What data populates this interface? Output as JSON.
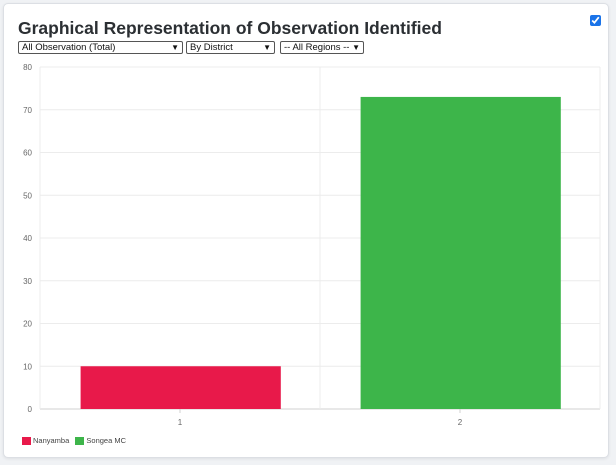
{
  "panel": {
    "title": "Graphical Representation of Observation Identified",
    "show_checkbox_checked": true
  },
  "filters": {
    "observation": {
      "selected": "All Observation (Total)",
      "icon": "chevron-down-icon"
    },
    "grouping": {
      "selected": "By District",
      "icon": "chevron-down-icon"
    },
    "region": {
      "selected": "-- All Regions --",
      "icon": "chevron-down-icon"
    }
  },
  "chart_data": {
    "type": "bar",
    "categories": [
      "1",
      "2"
    ],
    "values": [
      10,
      73
    ],
    "ylim": [
      0,
      80
    ],
    "yticks": [
      "0",
      "10",
      "20",
      "30",
      "40",
      "50",
      "60",
      "70",
      "80"
    ],
    "grid": true,
    "legend_position": "bottom-left",
    "series": [
      {
        "name": "Nanyamba",
        "value": 10,
        "color": "#e8194a"
      },
      {
        "name": "Songea MC",
        "value": 73,
        "color": "#3db54a"
      }
    ]
  }
}
